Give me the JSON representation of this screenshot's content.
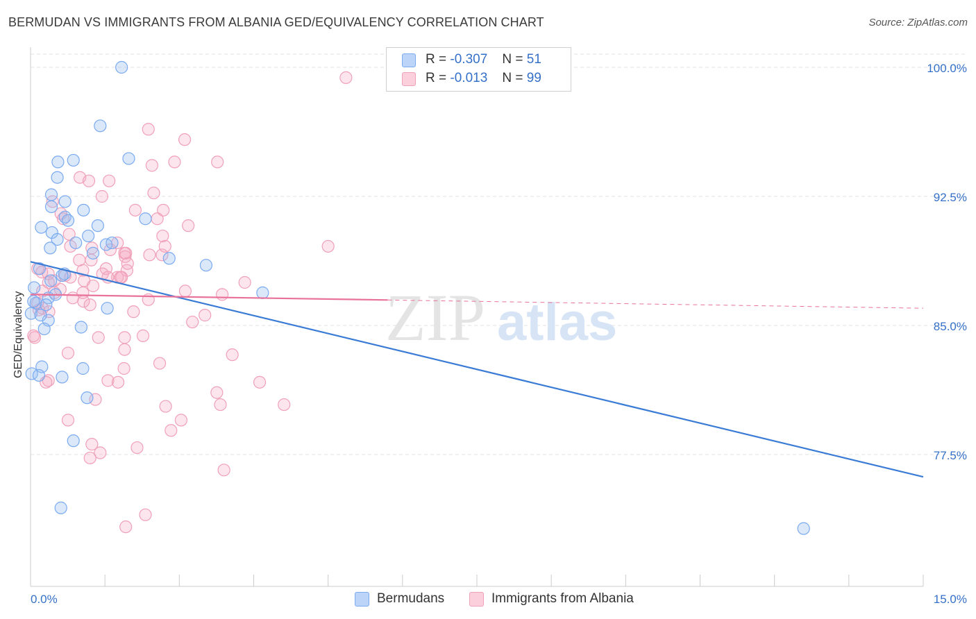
{
  "title": "BERMUDAN VS IMMIGRANTS FROM ALBANIA GED/EQUIVALENCY CORRELATION CHART",
  "source": "Source: ZipAtlas.com",
  "watermark": {
    "zip": "ZIP",
    "atlas": "atlas"
  },
  "legend": {
    "rows": [
      {
        "r_label": "R =",
        "r_value": "-0.307",
        "n_label": "N =",
        "n_value": "51",
        "color": "#7aaaf0",
        "fill": "#bcd4f8"
      },
      {
        "r_label": "R =",
        "r_value": "-0.013",
        "n_label": "N =",
        "n_value": "99",
        "color": "#f0a0b8",
        "fill": "#fbd0dc"
      }
    ]
  },
  "bottom_legend": [
    {
      "label": "Bermudans",
      "color": "#7aaaf0",
      "fill": "#bcd4f8"
    },
    {
      "label": "Immigrants from Albania",
      "color": "#f0a0b8",
      "fill": "#fbd0dc"
    }
  ],
  "chart_data": {
    "type": "scatter",
    "title": "BERMUDAN VS IMMIGRANTS FROM ALBANIA GED/EQUIVALENCY CORRELATION CHART",
    "xlabel": "",
    "ylabel": "GED/Equivalency",
    "xlim": [
      0,
      15
    ],
    "ylim": [
      71.0,
      101.0
    ],
    "x_tick_labels": [
      "0.0%",
      "15.0%"
    ],
    "y_ticks": [
      77.5,
      85.0,
      92.5,
      100.0
    ],
    "y_tick_labels": [
      "77.5%",
      "85.0%",
      "92.5%",
      "100.0%"
    ],
    "grid": true,
    "colors": {
      "bermudans": "#3a7bd5",
      "albania": "#e8729a",
      "axis_text": "#3570c8"
    },
    "series": [
      {
        "name": "Bermudans",
        "color": "#7aaaf0",
        "trend": {
          "x": [
            0.0,
            15.0
          ],
          "y": [
            88.7,
            76.2
          ],
          "color": "#3a7bd5"
        },
        "points": [
          [
            1.53,
            100.0
          ],
          [
            1.17,
            96.6
          ],
          [
            0.46,
            94.5
          ],
          [
            0.72,
            94.6
          ],
          [
            1.65,
            94.7
          ],
          [
            0.45,
            93.6
          ],
          [
            0.35,
            92.6
          ],
          [
            0.58,
            92.2
          ],
          [
            0.35,
            91.9
          ],
          [
            0.89,
            91.7
          ],
          [
            0.58,
            91.3
          ],
          [
            1.93,
            91.2
          ],
          [
            0.63,
            91.1
          ],
          [
            0.18,
            90.7
          ],
          [
            1.13,
            90.8
          ],
          [
            0.36,
            90.4
          ],
          [
            0.97,
            90.2
          ],
          [
            0.45,
            90.0
          ],
          [
            0.76,
            89.8
          ],
          [
            1.27,
            89.7
          ],
          [
            1.37,
            89.8
          ],
          [
            0.33,
            89.5
          ],
          [
            1.05,
            89.2
          ],
          [
            2.33,
            88.9
          ],
          [
            2.95,
            88.5
          ],
          [
            0.15,
            88.3
          ],
          [
            0.57,
            88.0
          ],
          [
            0.34,
            87.6
          ],
          [
            0.06,
            87.2
          ],
          [
            0.3,
            86.6
          ],
          [
            3.9,
            86.9
          ],
          [
            0.42,
            86.8
          ],
          [
            0.09,
            86.3
          ],
          [
            0.26,
            86.2
          ],
          [
            1.29,
            86.0
          ],
          [
            0.01,
            85.7
          ],
          [
            0.3,
            85.3
          ],
          [
            0.23,
            84.8
          ],
          [
            0.85,
            84.9
          ],
          [
            0.19,
            82.6
          ],
          [
            0.88,
            82.5
          ],
          [
            0.02,
            82.2
          ],
          [
            0.14,
            82.1
          ],
          [
            0.53,
            82.0
          ],
          [
            0.95,
            80.8
          ],
          [
            0.72,
            78.3
          ],
          [
            0.51,
            74.4
          ],
          [
            12.99,
            73.2
          ],
          [
            0.17,
            85.6
          ],
          [
            0.53,
            87.9
          ],
          [
            0.05,
            86.4
          ]
        ]
      },
      {
        "name": "Immigrants from Albania",
        "color": "#f0a0b8",
        "trend": {
          "x": [
            0.0,
            15.0
          ],
          "y": [
            86.8,
            86.0
          ],
          "solid_until": 6.0,
          "color": "#e8729a"
        },
        "points": [
          [
            5.3,
            99.4
          ],
          [
            1.98,
            96.4
          ],
          [
            2.59,
            95.8
          ],
          [
            2.42,
            94.5
          ],
          [
            3.14,
            94.5
          ],
          [
            2.04,
            94.3
          ],
          [
            0.83,
            93.6
          ],
          [
            0.98,
            93.4
          ],
          [
            1.32,
            93.4
          ],
          [
            2.07,
            92.7
          ],
          [
            1.2,
            92.5
          ],
          [
            0.37,
            92.2
          ],
          [
            1.76,
            91.7
          ],
          [
            2.23,
            91.7
          ],
          [
            0.51,
            91.5
          ],
          [
            0.55,
            91.2
          ],
          [
            2.13,
            91.2
          ],
          [
            2.65,
            90.8
          ],
          [
            0.65,
            90.3
          ],
          [
            2.22,
            90.2
          ],
          [
            1.46,
            89.8
          ],
          [
            5.0,
            89.6
          ],
          [
            0.67,
            89.6
          ],
          [
            1.03,
            89.5
          ],
          [
            1.34,
            89.4
          ],
          [
            2.26,
            89.6
          ],
          [
            1.6,
            89.2
          ],
          [
            1.58,
            89.2
          ],
          [
            2.0,
            89.1
          ],
          [
            2.21,
            89.1
          ],
          [
            1.59,
            89.0
          ],
          [
            0.82,
            88.8
          ],
          [
            1.02,
            88.8
          ],
          [
            1.63,
            88.6
          ],
          [
            1.27,
            88.3
          ],
          [
            0.12,
            88.3
          ],
          [
            1.62,
            88.2
          ],
          [
            0.88,
            88.2
          ],
          [
            0.19,
            88.1
          ],
          [
            0.3,
            88.0
          ],
          [
            1.21,
            88.0
          ],
          [
            0.58,
            87.9
          ],
          [
            0.67,
            87.8
          ],
          [
            1.46,
            87.8
          ],
          [
            1.51,
            87.8
          ],
          [
            1.53,
            87.8
          ],
          [
            1.3,
            87.8
          ],
          [
            3.6,
            87.5
          ],
          [
            0.4,
            87.6
          ],
          [
            0.9,
            87.6
          ],
          [
            0.3,
            87.5
          ],
          [
            1.05,
            87.3
          ],
          [
            0.5,
            87.1
          ],
          [
            0.2,
            87.0
          ],
          [
            0.4,
            86.9
          ],
          [
            2.6,
            87.0
          ],
          [
            0.88,
            86.9
          ],
          [
            3.22,
            86.8
          ],
          [
            0.71,
            86.6
          ],
          [
            1.98,
            86.5
          ],
          [
            0.89,
            86.4
          ],
          [
            0.12,
            86.3
          ],
          [
            1.0,
            86.2
          ],
          [
            0.2,
            86.0
          ],
          [
            0.14,
            85.9
          ],
          [
            0.31,
            85.8
          ],
          [
            1.73,
            85.8
          ],
          [
            2.93,
            85.6
          ],
          [
            2.72,
            85.2
          ],
          [
            1.14,
            84.3
          ],
          [
            1.58,
            84.3
          ],
          [
            1.89,
            84.4
          ],
          [
            0.07,
            84.3
          ],
          [
            1.58,
            83.6
          ],
          [
            0.63,
            83.4
          ],
          [
            3.39,
            83.3
          ],
          [
            2.17,
            82.8
          ],
          [
            1.57,
            82.5
          ],
          [
            0.3,
            81.8
          ],
          [
            1.3,
            81.8
          ],
          [
            1.47,
            81.7
          ],
          [
            3.85,
            81.7
          ],
          [
            3.13,
            81.1
          ],
          [
            1.09,
            80.7
          ],
          [
            4.26,
            80.4
          ],
          [
            3.19,
            80.4
          ],
          [
            2.27,
            80.3
          ],
          [
            0.63,
            79.5
          ],
          [
            2.53,
            79.5
          ],
          [
            2.36,
            78.9
          ],
          [
            1.03,
            78.1
          ],
          [
            1.79,
            77.9
          ],
          [
            1.17,
            77.6
          ],
          [
            1.0,
            77.3
          ],
          [
            3.25,
            76.6
          ],
          [
            1.93,
            74.0
          ],
          [
            1.6,
            73.3
          ],
          [
            0.26,
            81.7
          ],
          [
            0.05,
            84.4
          ]
        ]
      }
    ]
  }
}
